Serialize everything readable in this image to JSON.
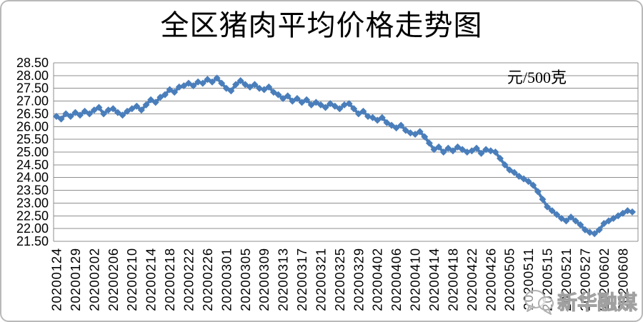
{
  "chart_data": {
    "type": "line",
    "title": "全区猪肉平均价格走势图",
    "unit": "元/500克",
    "xlabel": "",
    "ylabel": "",
    "ylim": [
      21.5,
      28.5
    ],
    "ytick_step": 0.5,
    "ytick_labels": [
      "28.50",
      "28.00",
      "27.50",
      "27.00",
      "26.50",
      "26.00",
      "25.50",
      "25.00",
      "24.50",
      "24.00",
      "23.50",
      "23.00",
      "22.50",
      "22.00",
      "21.50"
    ],
    "x_tick_labels": [
      "20200124",
      "20200129",
      "20200202",
      "20200206",
      "20200210",
      "20200214",
      "20200218",
      "20200222",
      "20200226",
      "20200301",
      "20200305",
      "20200309",
      "20200313",
      "20200317",
      "20200321",
      "20200325",
      "20200329",
      "20200402",
      "20200406",
      "20200410",
      "20200414",
      "20200418",
      "20200422",
      "20200426",
      "20200505",
      "20200511",
      "20200515",
      "20200521",
      "20200527",
      "20200602",
      "20200608"
    ],
    "points_per_xtick": 4,
    "grid": true,
    "legend": "none",
    "marker": "diamond",
    "line_color": "#4a7ebb",
    "marker_color": "#4a7ebb",
    "grid_color": "#8f8f8f",
    "series": [
      {
        "values": [
          26.4,
          26.3,
          26.5,
          26.4,
          26.55,
          26.45,
          26.6,
          26.5,
          26.65,
          26.75,
          26.5,
          26.65,
          26.7,
          26.55,
          26.45,
          26.6,
          26.7,
          26.8,
          26.65,
          26.85,
          27.05,
          26.95,
          27.15,
          27.25,
          27.45,
          27.35,
          27.55,
          27.6,
          27.7,
          27.6,
          27.75,
          27.7,
          27.85,
          27.75,
          27.9,
          27.7,
          27.5,
          27.4,
          27.65,
          27.8,
          27.65,
          27.55,
          27.65,
          27.5,
          27.45,
          27.55,
          27.35,
          27.25,
          27.1,
          27.2,
          27.0,
          27.1,
          26.95,
          27.05,
          26.85,
          26.95,
          26.85,
          26.75,
          26.9,
          26.8,
          26.7,
          26.85,
          26.9,
          26.7,
          26.5,
          26.6,
          26.4,
          26.35,
          26.25,
          26.35,
          26.15,
          26.05,
          25.95,
          26.05,
          25.85,
          25.75,
          25.7,
          25.8,
          25.6,
          25.35,
          25.1,
          25.2,
          25.0,
          25.15,
          25.05,
          25.2,
          25.1,
          25.0,
          25.05,
          25.15,
          24.95,
          25.1,
          25.05,
          25.0,
          24.75,
          24.5,
          24.3,
          24.2,
          24.05,
          23.95,
          23.85,
          23.7,
          23.45,
          23.15,
          22.85,
          22.7,
          22.55,
          22.4,
          22.3,
          22.45,
          22.3,
          22.15,
          21.95,
          21.85,
          21.8,
          21.95,
          22.2,
          22.3,
          22.4,
          22.5,
          22.6,
          22.7,
          22.65
        ]
      }
    ]
  },
  "watermark": {
    "text": "新华融媒"
  }
}
